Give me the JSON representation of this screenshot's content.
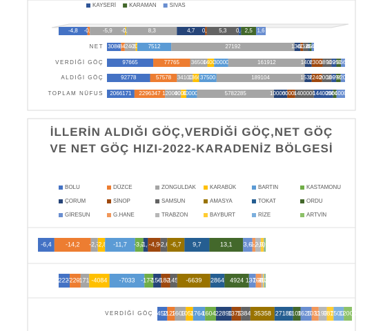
{
  "chart_data": [
    {
      "type": "bar",
      "orientation": "horizontal",
      "stacked": true,
      "categories": [
        null,
        "NET",
        "VERDİĞİ GÖÇ",
        "ALDIĞI GÖÇ",
        "TOPLAM NÜFUS"
      ],
      "series": [
        {
          "color": "#4472c4",
          "values": [
            -4.8,
            3086,
            97665,
            92778,
            2066171
          ],
          "value_labels": [
            "-4,8",
            null,
            null,
            null,
            null
          ]
        },
        {
          "color": "#ed7d31",
          "values": [
            -0.4,
            -846,
            77765,
            57578,
            2296347
          ],
          "value_labels": [
            "-0,4",
            null,
            null,
            null,
            null
          ]
        },
        {
          "color": "#a5a5a5",
          "values": [
            -5.9,
            -2409,
            36500,
            34100,
            1200000
          ],
          "value_labels": [
            "-5,9",
            null,
            null,
            null,
            null
          ]
        },
        {
          "color": "#ffc000",
          "values": [
            -0.2,
            -337,
            14000,
            13663,
            400000
          ],
          "value_labels": [
            "-0,2",
            null,
            null,
            null,
            null
          ]
        },
        {
          "color": "#5b9bd5",
          "values": [
            0.1,
            7512,
            30000,
            37500,
            800000
          ],
          "value_labels": [
            "0,1",
            null,
            null,
            null,
            null
          ]
        },
        {
          "color": "#a5a5a5",
          "values": [
            8.3,
            27192,
            161912,
            189104,
            5782285
          ],
          "value_labels": [
            "8,3",
            null,
            null,
            null,
            null
          ]
        },
        {
          "color": "#264478",
          "values": [
            4.7,
            1305,
            14064,
            15369,
            1000000
          ],
          "value_labels": [
            "4,7",
            null,
            null,
            null,
            null
          ]
        },
        {
          "color": "#9e480e",
          "values": [
            0.3,
            -600,
            23000,
            22400,
            600000
          ],
          "value_labels": [
            "0,3",
            null,
            null,
            null,
            null
          ]
        },
        {
          "color": "#636363",
          "values": [
            5.3,
            1180,
            18900,
            20080,
            1400000
          ],
          "value_labels": [
            "5,3",
            null,
            null,
            null,
            null
          ]
        },
        {
          "name": "KAYSERİ",
          "color": "#2f5597",
          "values": [
            0.4,
            -220,
            10297,
            10077,
            1440000
          ],
          "value_labels": [
            "0,4",
            null,
            null,
            null,
            null
          ]
        },
        {
          "name": "KARAMAN",
          "color": "#43682b",
          "values": [
            2.5,
            460,
            9500,
            9960,
            260000
          ],
          "value_labels": [
            "2,5",
            null,
            null,
            null,
            null
          ]
        },
        {
          "name": "SIVAS",
          "color": "#698ed0",
          "values": [
            1.6,
            540,
            8668,
            9208,
            640000
          ],
          "value_labels": [
            "1,6",
            null,
            null,
            null,
            null
          ]
        }
      ]
    },
    {
      "type": "bar",
      "orientation": "horizontal",
      "stacked": true,
      "title": "İLLERİN ALDIĞI GÖÇ,VERDİĞİ GÖÇ,NET GÖÇ VE NET GÖÇ HIZI-2022-KARADENİZ BÖLGESİ",
      "categories": [
        null,
        null,
        "VERDİĞİ GÖÇ"
      ],
      "series": [
        {
          "name": "BOLU",
          "color": "#4472c4",
          "values": [
            -6.4,
            -2227,
            14522
          ],
          "value_labels": [
            "-6,4",
            null,
            null
          ]
        },
        {
          "name": "DÜZCE",
          "color": "#ed7d31",
          "values": [
            -14.2,
            -2201,
            11220
          ],
          "value_labels": [
            "-14,2",
            null,
            null
          ]
        },
        {
          "name": "ZONGULDAK",
          "color": "#a5a5a5",
          "values": [
            -2.7,
            -1714,
            16032
          ],
          "value_labels": [
            "-2,7",
            null,
            null
          ]
        },
        {
          "name": "KARABÜK",
          "color": "#ffc000",
          "values": [
            -2.8,
            -4084,
            10588
          ],
          "value_labels": [
            "-2,8",
            null,
            null
          ]
        },
        {
          "name": "BARTIN",
          "color": "#5b9bd5",
          "values": [
            -11.7,
            -7033,
            17642
          ],
          "value_labels": [
            "-11,7",
            null,
            null
          ]
        },
        {
          "name": "KASTAMONU",
          "color": "#70ad47",
          "values": [
            -3.2,
            -1775,
            16048
          ],
          "value_labels": [
            "-3,2",
            null,
            null
          ]
        },
        {
          "name": "ÇORUM",
          "color": "#264478",
          "values": [
            -1.8,
            -1567,
            22891
          ],
          "value_labels": [
            "-1,8",
            null,
            null
          ]
        },
        {
          "name": "SİNOP",
          "color": "#9e480e",
          "values": [
            -4.9,
            -1823,
            13757
          ],
          "value_labels": [
            "-4,9",
            null,
            null
          ]
        },
        {
          "name": "SAMSUN",
          "color": "#636363",
          "values": [
            -2.6,
            -1450,
            13843
          ],
          "value_labels": [
            "-2,6",
            null,
            null
          ]
        },
        {
          "name": "AMASYA",
          "color": "#997300",
          "values": [
            -6.7,
            -6639,
            35358
          ],
          "value_labels": [
            "-6,7",
            null,
            null
          ]
        },
        {
          "name": "TOKAT",
          "color": "#255e91",
          "values": [
            9.7,
            2864,
            27180
          ],
          "value_labels": [
            "9,7",
            null,
            null
          ]
        },
        {
          "name": "ORDU",
          "color": "#43682b",
          "values": [
            13.1,
            4924,
            11015
          ],
          "value_labels": [
            "13,1",
            null,
            null
          ]
        },
        {
          "name": "GİRESUN",
          "color": "#698ed0",
          "values": [
            3.6,
            1371,
            16258
          ],
          "value_labels": [
            "3,6",
            null,
            null
          ]
        },
        {
          "name": "G.HANE",
          "color": "#f1975a",
          "values": [
            -1.2,
            -1085,
            10337
          ],
          "value_labels": [
            "-1,2",
            null,
            null
          ]
        },
        {
          "name": "TRABZON",
          "color": "#b7b7b7",
          "values": [
            -2.1,
            -390,
            11932
          ],
          "value_labels": [
            "-2,1",
            null,
            null
          ]
        },
        {
          "name": "BAYBURT",
          "color": "#ffcd33",
          "values": [
            -1.2,
            -210,
            9879
          ],
          "value_labels": [
            "-1,2",
            null,
            null
          ]
        },
        {
          "name": "RİZE",
          "color": "#7cafdd",
          "values": [
            0.3,
            -180,
            15000
          ],
          "value_labels": [
            "0,3",
            null,
            null
          ]
        },
        {
          "name": "ARTVİN",
          "color": "#8cc168",
          "values": [
            -0.4,
            -120,
            12000
          ],
          "value_labels": [
            "-0,4",
            null,
            null
          ]
        }
      ]
    }
  ]
}
